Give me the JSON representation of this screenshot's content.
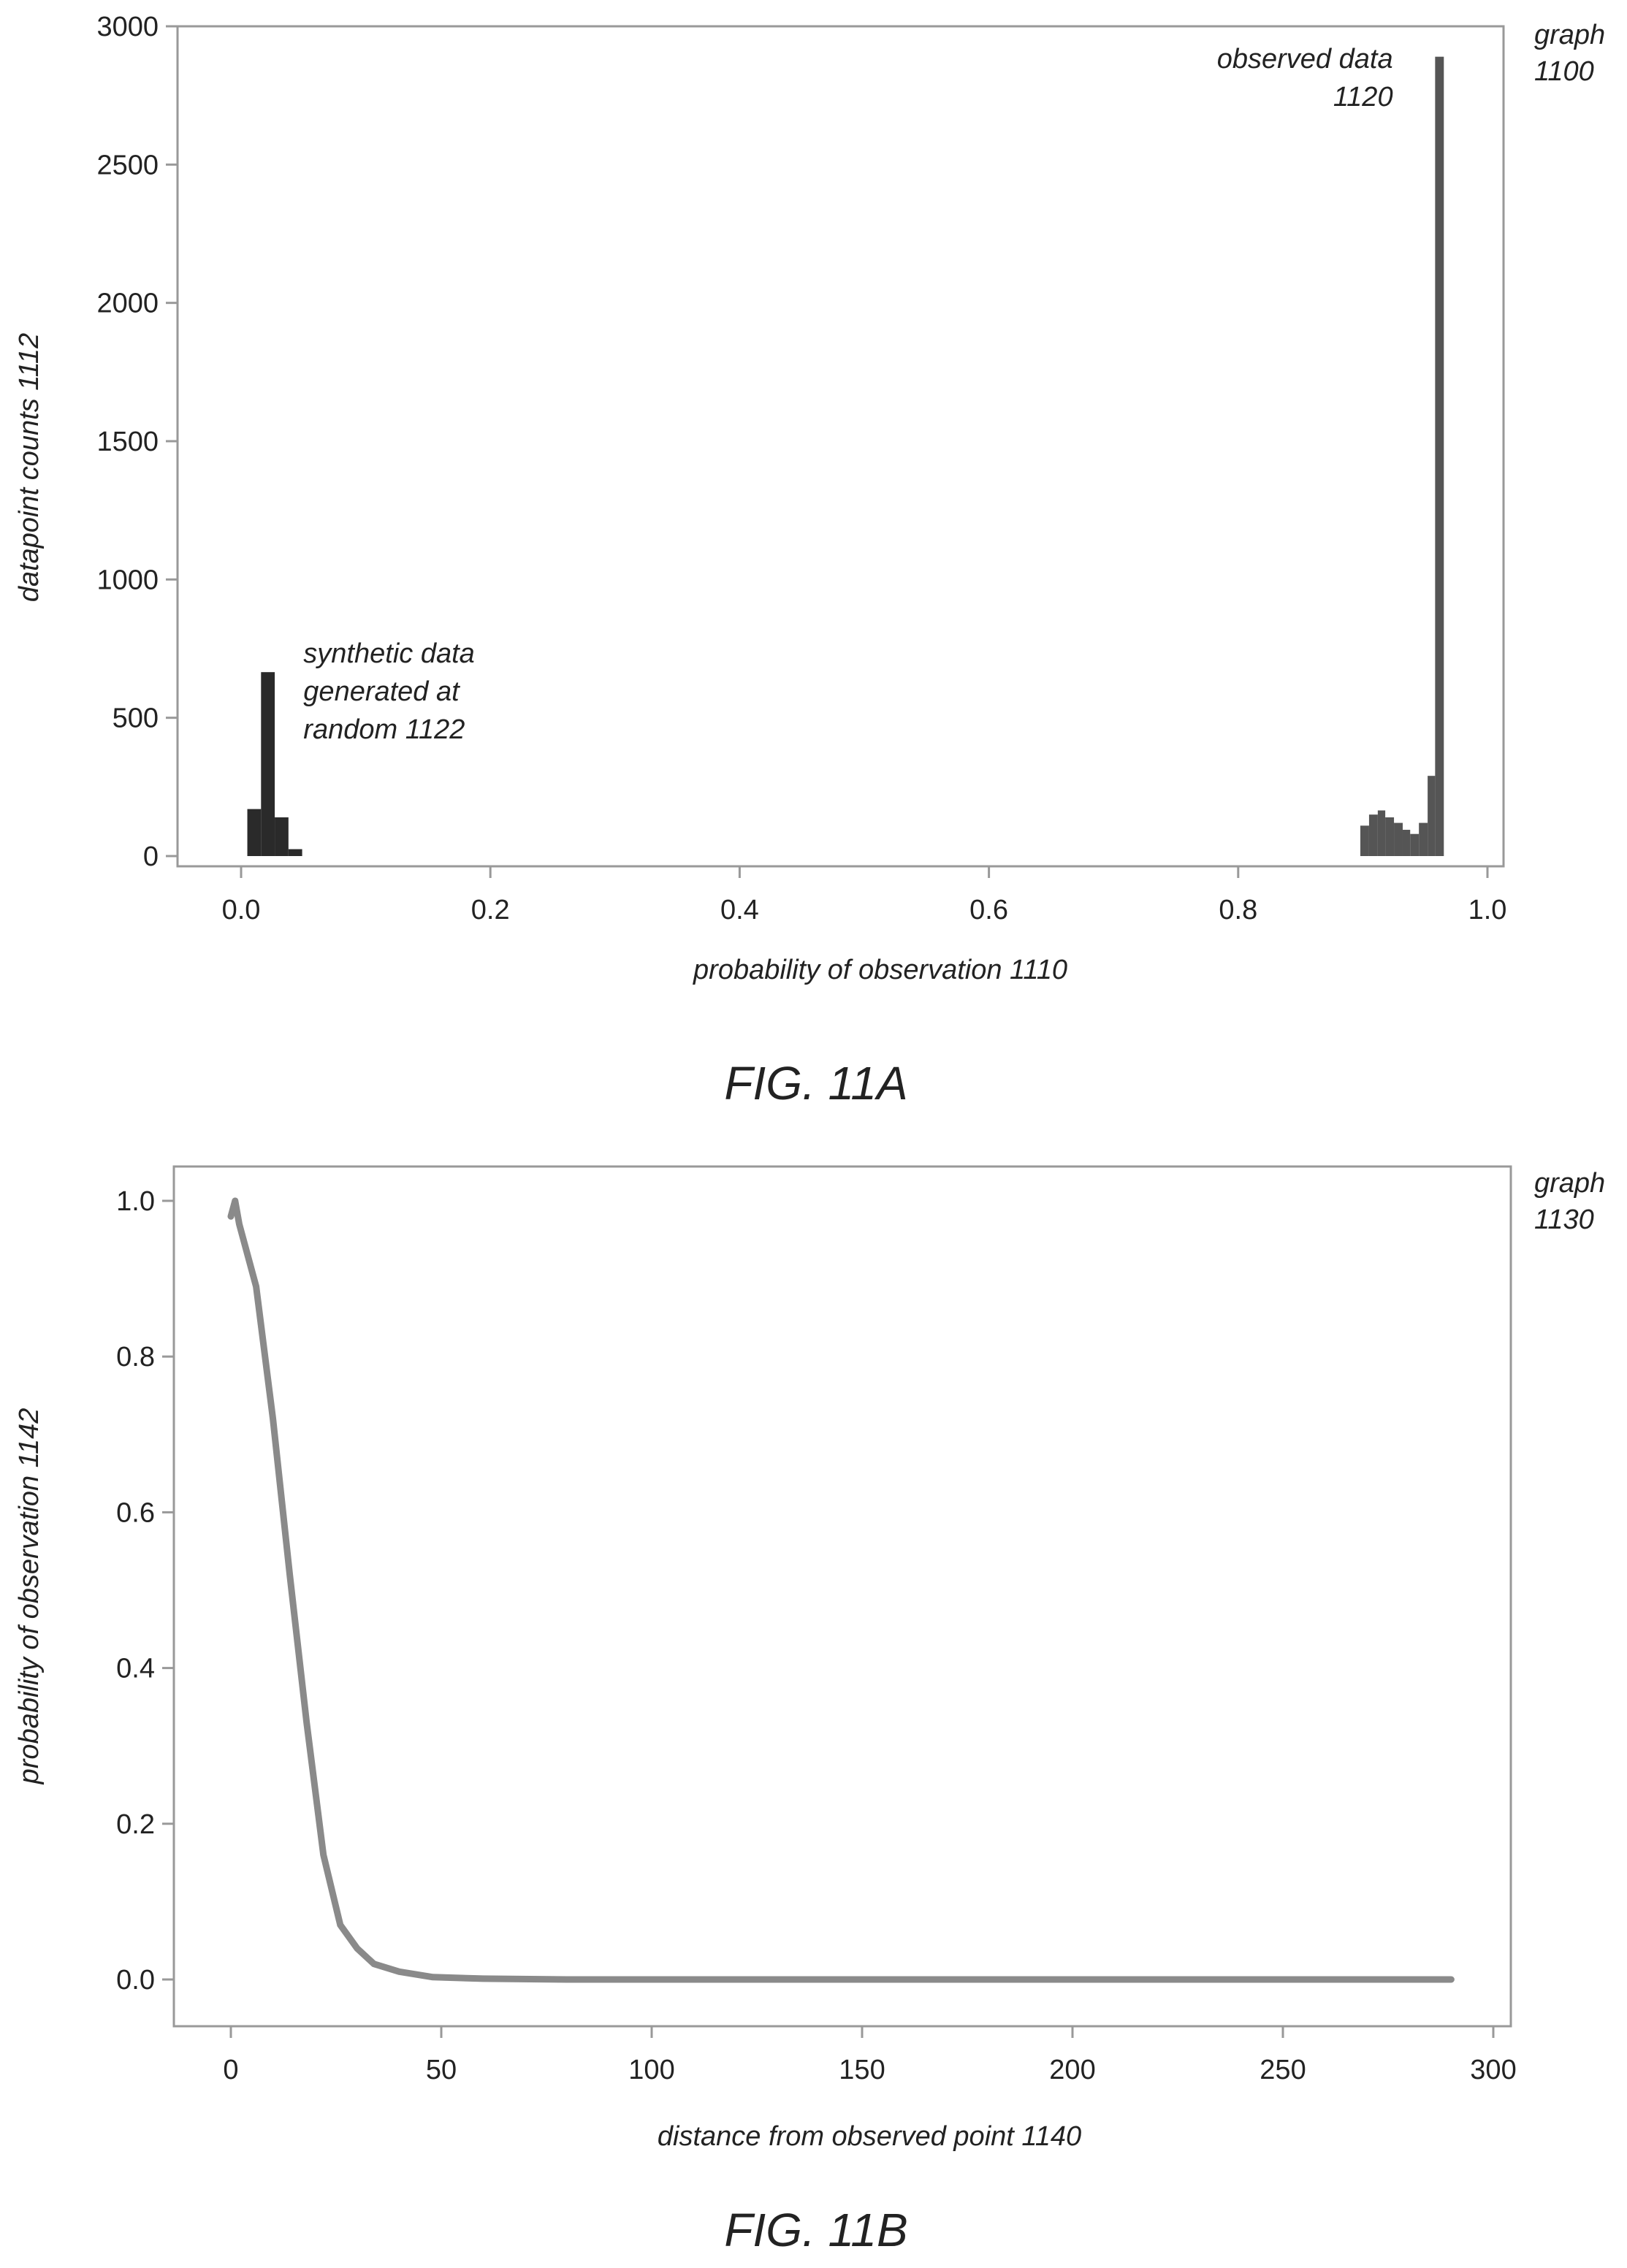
{
  "chart_data": [
    {
      "type": "bar",
      "figure_caption": "FIG. 11A",
      "graph_label_line1": "graph",
      "graph_label_line2": "1100",
      "xlabel": "probability of observation 1110",
      "ylabel": "datapoint counts 1112",
      "xlim": [
        -0.04,
        1.02
      ],
      "ylim": [
        0,
        3000
      ],
      "xticks": [
        0.0,
        0.2,
        0.4,
        0.6,
        0.8,
        1.0
      ],
      "xtick_labels": [
        "0.0",
        "0.2",
        "0.4",
        "0.6",
        "0.8",
        "1.0"
      ],
      "yticks": [
        0,
        500,
        1000,
        1500,
        2000,
        2500,
        3000
      ],
      "ytick_labels": [
        "0",
        "500",
        "1000",
        "1500",
        "2000",
        "2500",
        "3000"
      ],
      "grid": false,
      "series": [
        {
          "name": "synthetic data generated at random 1122",
          "color": "#2a2a2a",
          "bins": [
            {
              "x0": 0.005,
              "x1": 0.016,
              "value": 170
            },
            {
              "x0": 0.016,
              "x1": 0.027,
              "value": 665
            },
            {
              "x0": 0.027,
              "x1": 0.038,
              "value": 140
            },
            {
              "x0": 0.038,
              "x1": 0.049,
              "value": 25
            }
          ]
        },
        {
          "name": "observed data 1120",
          "color": "#555555",
          "bins": [
            {
              "x0": 0.898,
              "x1": 0.905,
              "value": 110
            },
            {
              "x0": 0.905,
              "x1": 0.912,
              "value": 150
            },
            {
              "x0": 0.912,
              "x1": 0.918,
              "value": 165
            },
            {
              "x0": 0.918,
              "x1": 0.925,
              "value": 140
            },
            {
              "x0": 0.925,
              "x1": 0.932,
              "value": 120
            },
            {
              "x0": 0.932,
              "x1": 0.938,
              "value": 95
            },
            {
              "x0": 0.938,
              "x1": 0.945,
              "value": 80
            },
            {
              "x0": 0.945,
              "x1": 0.952,
              "value": 120
            },
            {
              "x0": 0.952,
              "x1": 0.958,
              "value": 290
            },
            {
              "x0": 0.958,
              "x1": 0.965,
              "value": 2890
            }
          ]
        }
      ],
      "annotations": [
        {
          "lines": [
            "synthetic data",
            "generated at",
            "random 1122"
          ],
          "align": "left",
          "anchor_x": 0.05,
          "anchor_y": 700
        },
        {
          "lines": [
            "observed data",
            "1120"
          ],
          "align": "right",
          "anchor_x": 0.93,
          "anchor_y": 2850
        }
      ]
    },
    {
      "type": "line",
      "figure_caption": "FIG. 11B",
      "graph_label_line1": "graph",
      "graph_label_line2": "1130",
      "xlabel": "distance from observed point 1140",
      "ylabel": "probability of observation 1142",
      "xlim": [
        -14,
        305
      ],
      "ylim": [
        -0.07,
        1.08
      ],
      "xticks": [
        0,
        50,
        100,
        150,
        200,
        250,
        300
      ],
      "xtick_labels": [
        "0",
        "50",
        "100",
        "150",
        "200",
        "250",
        "300"
      ],
      "yticks": [
        0.0,
        0.2,
        0.4,
        0.6,
        0.8,
        1.0
      ],
      "ytick_labels": [
        "0.0",
        "0.2",
        "0.4",
        "0.6",
        "0.8",
        "1.0"
      ],
      "grid": false,
      "series": [
        {
          "color": "#8a8a8a",
          "x": [
            0,
            1,
            2,
            6,
            10,
            14,
            18,
            22,
            26,
            30,
            34,
            40,
            48,
            60,
            80,
            120,
            160,
            200,
            240,
            290
          ],
          "y": [
            0.98,
            1.0,
            0.97,
            0.89,
            0.72,
            0.52,
            0.33,
            0.16,
            0.07,
            0.04,
            0.02,
            0.01,
            0.003,
            0.001,
            0.0,
            0.0,
            0.0,
            0.0,
            0.0,
            0.0
          ]
        }
      ]
    }
  ]
}
